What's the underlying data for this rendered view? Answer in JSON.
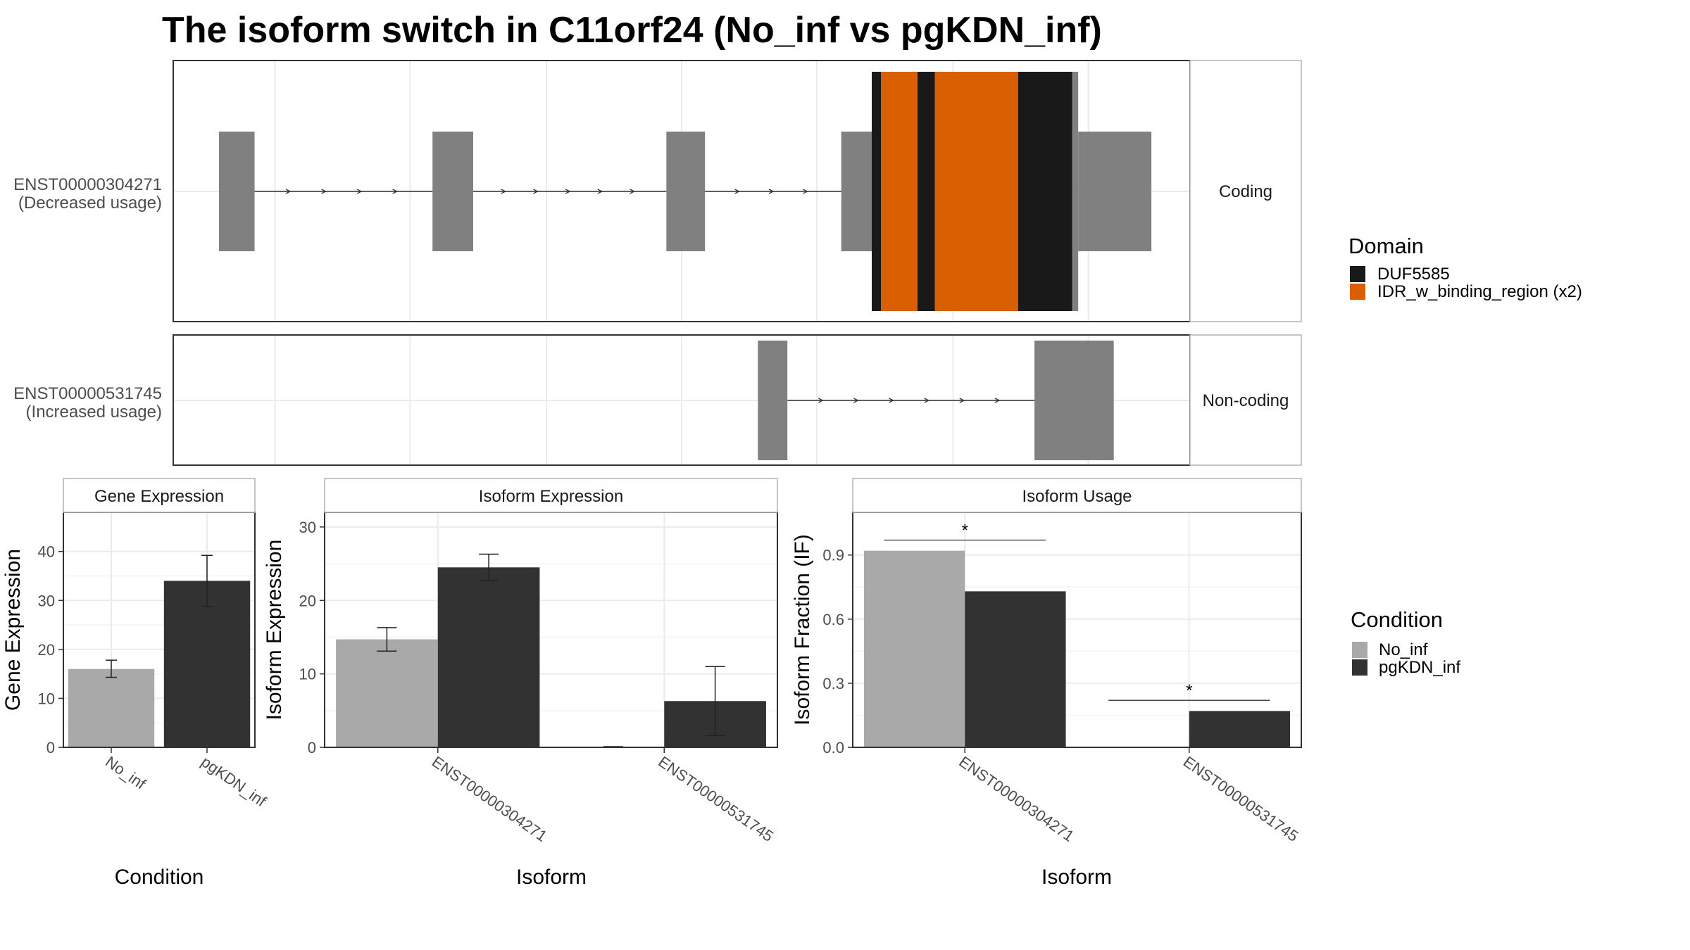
{
  "title": "The isoform switch in C11orf24 (No_inf vs pgKDN_inf)",
  "colors": {
    "no_inf": "#a9a9a9",
    "pgkdn_inf": "#323232",
    "exon": "#808080",
    "duf5585": "#191919",
    "idr": "#d95f02",
    "panel_border": "#333333",
    "strip_border": "#b3b3b3",
    "grid": "#ebebeb"
  },
  "structure": {
    "x_range": [
      0,
      100
    ],
    "transcripts": [
      {
        "id": "ENST00000304271",
        "usage": "(Decreased usage)",
        "strip": "Coding",
        "exons": [
          [
            4.5,
            8
          ],
          [
            25.5,
            29.5
          ],
          [
            48.5,
            52.3
          ],
          [
            65.7,
            68.7
          ],
          [
            89,
            96.2
          ]
        ],
        "cds": [
          [
            68.7,
            89
          ]
        ],
        "domains": [
          {
            "name": "DUF5585",
            "start": 68.7,
            "end": 69.6
          },
          {
            "name": "IDR_w_binding_region (x2)",
            "start": 69.6,
            "end": 73.2
          },
          {
            "name": "DUF5585",
            "start": 73.2,
            "end": 74.9
          },
          {
            "name": "IDR_w_binding_region (x2)",
            "start": 74.9,
            "end": 83.1
          },
          {
            "name": "DUF5585",
            "start": 83.1,
            "end": 88.4
          }
        ]
      },
      {
        "id": "ENST00000531745",
        "usage": "(Increased usage)",
        "strip": "Non-coding",
        "exons": [
          [
            57.5,
            60.4
          ],
          [
            84.7,
            92.5
          ]
        ],
        "cds": [],
        "domains": []
      }
    ],
    "legend": {
      "title": "Domain",
      "items": [
        {
          "label": "DUF5585",
          "color": "#191919"
        },
        {
          "label": "IDR_w_binding_region (x2)",
          "color": "#d95f02"
        }
      ]
    }
  },
  "chart_data": [
    {
      "type": "bar",
      "strip": "Gene Expression",
      "xlabel": "Condition",
      "ylabel": "Gene Expression",
      "ylim": [
        0,
        48
      ],
      "yticks": [
        0,
        10,
        20,
        30,
        40
      ],
      "categories": [
        "No_inf",
        "pgKDN_inf"
      ],
      "values": [
        16,
        34
      ],
      "errors": [
        [
          14.3,
          17.8
        ],
        [
          28.8,
          39.2
        ]
      ]
    },
    {
      "type": "bar",
      "strip": "Isoform Expression",
      "xlabel": "Isoform",
      "ylabel": "Isoform Expression",
      "ylim": [
        0,
        32
      ],
      "yticks": [
        0,
        10,
        20,
        30
      ],
      "categories": [
        "ENST00000304271",
        "ENST00000531745"
      ],
      "series": [
        {
          "name": "No_inf",
          "values": [
            14.7,
            0.05
          ],
          "errors": [
            [
              13.1,
              16.3
            ],
            [
              0,
              0.1
            ]
          ]
        },
        {
          "name": "pgKDN_inf",
          "values": [
            24.5,
            6.3
          ],
          "errors": [
            [
              22.7,
              26.3
            ],
            [
              1.6,
              11.0
            ]
          ]
        }
      ]
    },
    {
      "type": "bar",
      "strip": "Isoform Usage",
      "xlabel": "Isoform",
      "ylabel": "Isoform Fraction (IF)",
      "ylim": [
        0,
        1.1
      ],
      "yticks": [
        "0.0",
        "0.3",
        "0.6",
        "0.9"
      ],
      "categories": [
        "ENST00000304271",
        "ENST00000531745"
      ],
      "series": [
        {
          "name": "No_inf",
          "values": [
            0.92,
            0.0
          ]
        },
        {
          "name": "pgKDN_inf",
          "values": [
            0.73,
            0.17
          ]
        }
      ],
      "significance": [
        {
          "category": "ENST00000304271",
          "y": 0.97,
          "label": "*"
        },
        {
          "category": "ENST00000531745",
          "y": 0.22,
          "label": "*"
        }
      ]
    }
  ],
  "condition_legend": {
    "title": "Condition",
    "items": [
      {
        "label": "No_inf",
        "color": "#a9a9a9"
      },
      {
        "label": "pgKDN_inf",
        "color": "#323232"
      }
    ]
  }
}
